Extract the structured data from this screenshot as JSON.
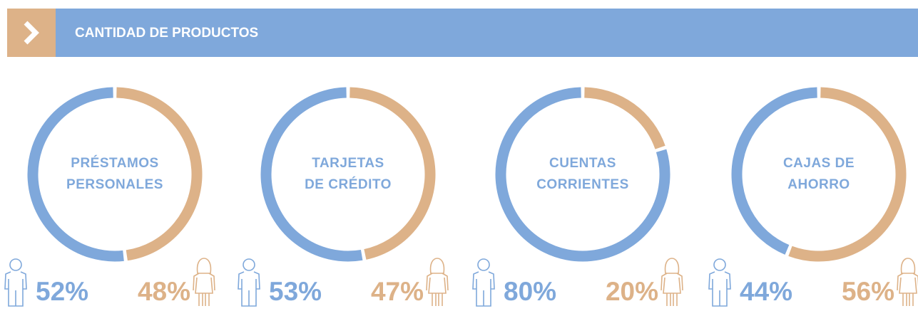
{
  "header": {
    "title": "CANTIDAD DE PRODUCTOS"
  },
  "chart_data": [
    {
      "type": "donut",
      "title": [
        "PRÉSTAMOS",
        "PERSONALES"
      ],
      "values": [
        52,
        48
      ],
      "value_labels": [
        "52%",
        "48%"
      ],
      "colors": [
        "#7fa8db",
        "#ddb288"
      ]
    },
    {
      "type": "donut",
      "title": [
        "TARJETAS",
        "DE CRÉDITO"
      ],
      "values": [
        53,
        47
      ],
      "value_labels": [
        "53%",
        "47%"
      ],
      "colors": [
        "#7fa8db",
        "#ddb288"
      ]
    },
    {
      "type": "donut",
      "title": [
        "CUENTAS",
        "CORRIENTES"
      ],
      "values": [
        80,
        20
      ],
      "value_labels": [
        "80%",
        "20%"
      ],
      "colors": [
        "#7fa8db",
        "#ddb288"
      ]
    },
    {
      "type": "donut",
      "title": [
        "CAJAS DE",
        "AHORRO"
      ],
      "values": [
        44,
        56
      ],
      "value_labels": [
        "44%",
        "56%"
      ],
      "colors": [
        "#7fa8db",
        "#ddb288"
      ]
    }
  ]
}
